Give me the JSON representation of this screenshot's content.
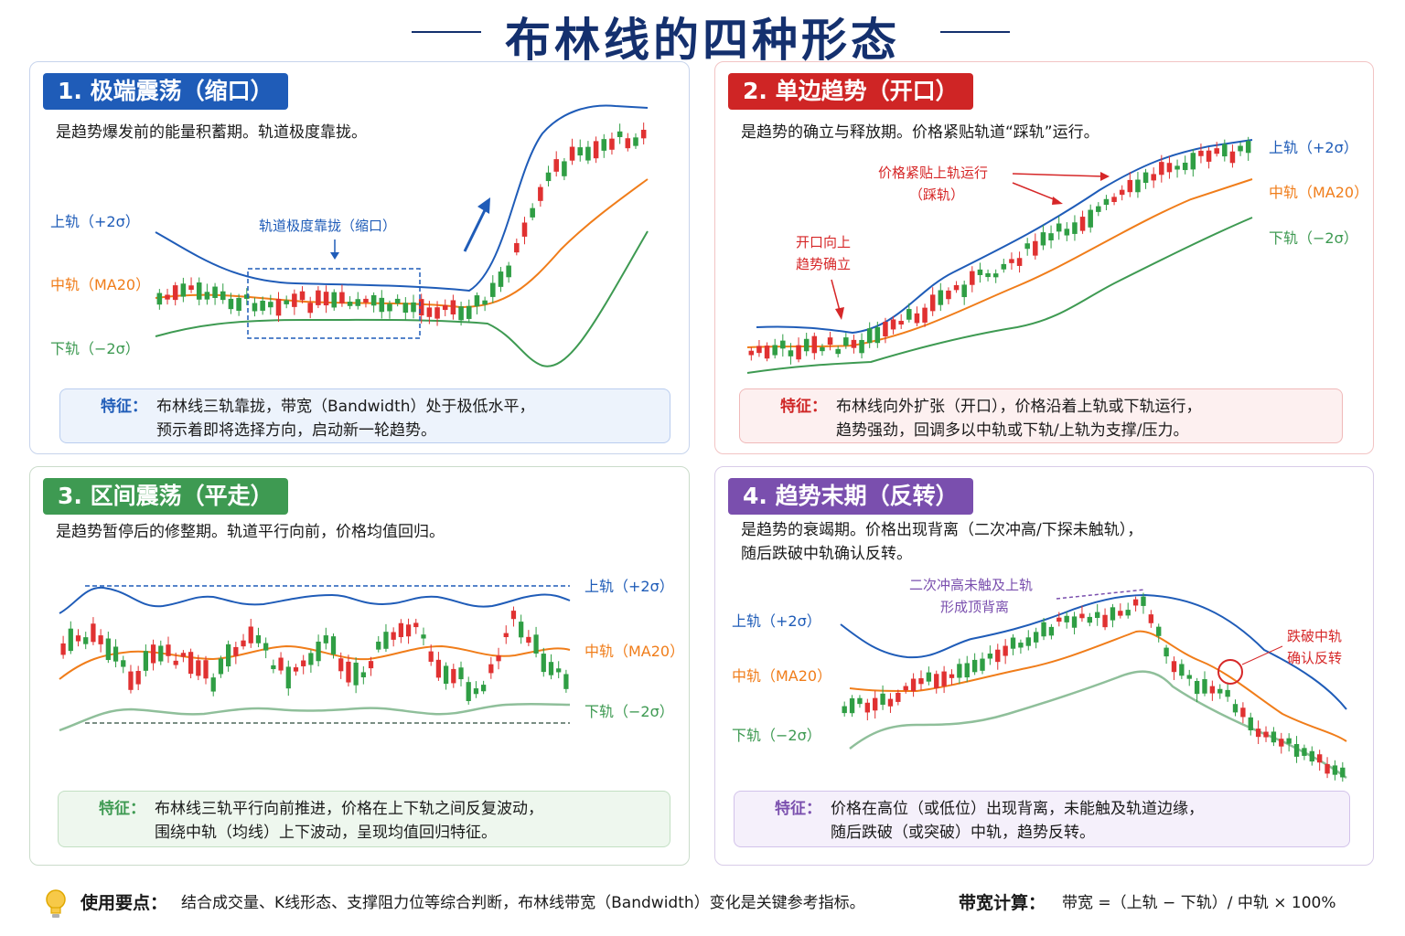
{
  "title": "布林线的四种形态",
  "labels": {
    "upper": "上轨（+2σ）",
    "middle": "中轨（MA20）",
    "lower": "下轨（−2σ）",
    "feature": "特征："
  },
  "panels": [
    {
      "title": "1. 极端震荡（缩口）",
      "desc": "是趋势爆发前的能量积蓄期。轨道极度靠拢。",
      "annotations": [
        "轨道极度靠拢（缩口）"
      ],
      "feature_lines": [
        "布林线三轨靠拢，带宽（Bandwidth）处于极低水平，",
        "预示着即将选择方向，启动新一轮趋势。"
      ]
    },
    {
      "title": "2. 单边趋势（开口）",
      "desc": "是趋势的确立与释放期。价格紧贴轨道“踩轨”运行。",
      "annotations": [
        "价格紧贴上轨运行",
        "（踩轨）",
        "开口向上",
        "趋势确立"
      ],
      "feature_lines": [
        "布林线向外扩张（开口），价格沿着上轨或下轨运行，",
        "趋势强劲，回调多以中轨或下轨/上轨为支撑/压力。"
      ]
    },
    {
      "title": "3. 区间震荡（平走）",
      "desc": "是趋势暂停后的修整期。轨道平行向前，价格均值回归。",
      "annotations": [],
      "feature_lines": [
        "布林线三轨平行向前推进，价格在上下轨之间反复波动，",
        "围绕中轨（均线）上下波动，呈现均值回归特征。"
      ]
    },
    {
      "title": "4. 趋势末期（反转）",
      "desc_lines": [
        "是趋势的衰竭期。价格出现背离（二次冲高/下探未触轨），",
        "随后跌破中轨确认反转。"
      ],
      "annotations": [
        "二次冲高未触及上轨",
        "形成顶背离",
        "跌破中轨",
        "确认反转"
      ],
      "feature_lines": [
        "价格在高位（或低位）出现背离，未能触及轨道边缘，",
        "随后跌破（或突破）中轨，趋势反转。"
      ]
    }
  ],
  "footer": {
    "tips_label": "使用要点：",
    "tips_text": "结合成交量、K线形态、支撑阻力位等综合判断，布林线带宽（Bandwidth）变化是关键参考指标。",
    "calc_label": "带宽计算：",
    "calc_text": "带宽 =（上轨 − 下轨）/ 中轨 × 100%"
  },
  "colors": {
    "upper": "#1f5cb8",
    "middle": "#f07d1a",
    "lower": "#3e9a52",
    "up_candle": "#e03131",
    "down_candle": "#2f9e44",
    "annotation_red": "#d62728",
    "annotation_purple": "#7a4fae"
  }
}
